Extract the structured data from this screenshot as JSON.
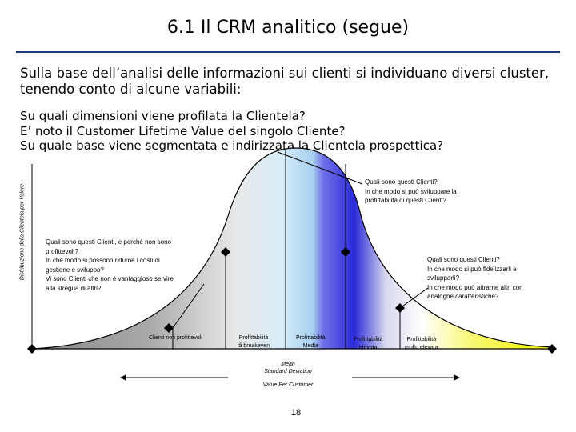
{
  "title": "6.1 Il CRM analitico (segue)",
  "intro": "Sulla base dell’analisi delle informazioni sui clienti si individuano diversi cluster, tenendo conto di alcune variabili:",
  "questions": [
    "Su quali dimensioni viene profilata la Clientela?",
    "E’ noto il Customer Lifetime Value del singolo Cliente?",
    "Su quale base viene segmentata e indirizzata la Clientela prospettica?"
  ],
  "y_axis_label": "Distribuzione della Clientela per Valore",
  "callouts": {
    "top_right": [
      "Quali sono questi Clienti?",
      "In che modo si può sviluppare la",
      "profittabilità di questi Clienti?"
    ],
    "left": [
      "Quali sono questi Clienti, e perché non sono",
      "profittevoli?",
      "In che modo si possono ridurne i costi di",
      "gestione e sviluppo?",
      "Vi sono Clienti che non è vantaggioso servire",
      "alla stregua di altri?"
    ],
    "right": [
      "Quali sono questi Clienti?",
      "In che modo si può fidelizzarli e",
      "svilupparli?",
      "In che modo può attrarne altri con",
      "analoghe caratteristiche?"
    ]
  },
  "segments": [
    {
      "label": "Clienti   non profittevoli",
      "color": "#808080"
    },
    {
      "label": "Profittabilità\ndi breakeven",
      "color": "#c8c8c8"
    },
    {
      "label": "Profittabilità\nMedia",
      "color": "#b0d8f0"
    },
    {
      "label": "Profittabilità\nelevata",
      "color": "#2020d0"
    },
    {
      "label": "Profittabilità\nmolto elevata",
      "color": "#f0f000"
    }
  ],
  "axis_notes": {
    "mean": "Mean",
    "std": "Standard Deviation",
    "x_axis": "Value Per Customer"
  },
  "page_number": "18"
}
